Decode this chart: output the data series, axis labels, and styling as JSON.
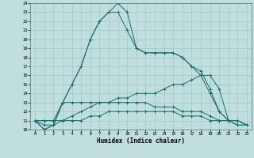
{
  "xlabel": "Humidex (Indice chaleur)",
  "bg_color": "#c0dede",
  "grid_color": "#a0c8c8",
  "line_color": "#1a6b6b",
  "xlim_min": -0.5,
  "xlim_max": 23.5,
  "ylim_min": 10,
  "ylim_max": 24,
  "xticks": [
    0,
    1,
    2,
    3,
    4,
    5,
    6,
    7,
    8,
    9,
    10,
    11,
    12,
    13,
    14,
    15,
    16,
    17,
    18,
    19,
    20,
    21,
    22,
    23
  ],
  "yticks": [
    10,
    11,
    12,
    13,
    14,
    15,
    16,
    17,
    18,
    19,
    20,
    21,
    22,
    23,
    24
  ],
  "series": [
    {
      "x": [
        0,
        1,
        2,
        3,
        4,
        5,
        6,
        7,
        8,
        9,
        10,
        11,
        12,
        13,
        14,
        15,
        16,
        17,
        18,
        19,
        20,
        21,
        22,
        23
      ],
      "y": [
        11,
        10,
        10.5,
        13,
        15,
        17,
        20,
        22,
        23,
        24,
        23,
        19,
        18.5,
        18.5,
        18.5,
        18.5,
        18,
        17,
        16.5,
        14.5,
        12,
        11,
        11,
        10.5
      ]
    },
    {
      "x": [
        0,
        1,
        2,
        3,
        4,
        5,
        6,
        7,
        8,
        9,
        10,
        11,
        12,
        13,
        14,
        15,
        16,
        17,
        18,
        19,
        20,
        21,
        22,
        23
      ],
      "y": [
        11,
        10,
        10.5,
        13,
        15,
        17,
        20,
        22,
        23,
        23,
        21,
        19,
        18.5,
        18.5,
        18.5,
        18.5,
        18,
        17,
        16,
        14,
        12,
        11,
        11,
        10.5
      ]
    },
    {
      "x": [
        0,
        1,
        2,
        3,
        4,
        5,
        6,
        7,
        8,
        9,
        10,
        11,
        12,
        13,
        14,
        15,
        16,
        17,
        18,
        19,
        20,
        21,
        22,
        23
      ],
      "y": [
        11,
        11,
        11,
        11,
        11.5,
        12,
        12.5,
        13,
        13,
        13.5,
        13.5,
        14,
        14,
        14,
        14.5,
        15,
        15,
        15.5,
        16,
        16,
        14.5,
        11,
        10.5,
        10.5
      ]
    },
    {
      "x": [
        0,
        1,
        2,
        3,
        4,
        5,
        6,
        7,
        8,
        9,
        10,
        11,
        12,
        13,
        14,
        15,
        16,
        17,
        18,
        19,
        20,
        21,
        22,
        23
      ],
      "y": [
        11,
        11,
        11,
        13,
        13,
        13,
        13,
        13,
        13,
        13,
        13,
        13,
        13,
        12.5,
        12.5,
        12.5,
        12,
        12,
        12,
        11.5,
        11,
        11,
        11,
        10.5
      ]
    },
    {
      "x": [
        0,
        1,
        2,
        3,
        4,
        5,
        6,
        7,
        8,
        9,
        10,
        11,
        12,
        13,
        14,
        15,
        16,
        17,
        18,
        19,
        20,
        21,
        22,
        23
      ],
      "y": [
        11,
        10.5,
        10.5,
        11,
        11,
        11,
        11.5,
        11.5,
        12,
        12,
        12,
        12,
        12,
        12,
        12,
        12,
        11.5,
        11.5,
        11.5,
        11,
        11,
        11,
        10.5,
        10.5
      ]
    }
  ]
}
